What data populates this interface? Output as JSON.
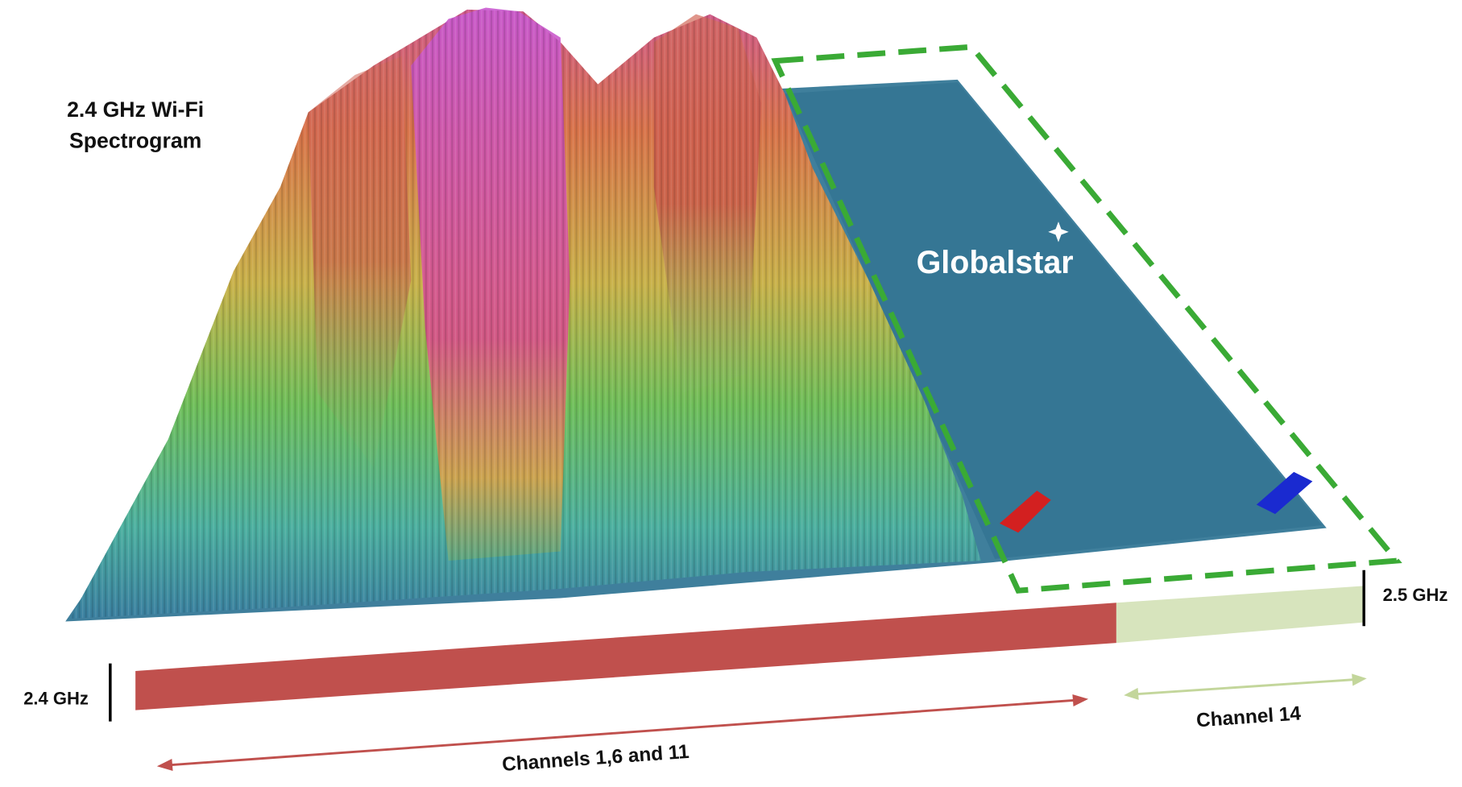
{
  "title": {
    "line1": "2.4 GHz Wi-Fi",
    "line2": "Spectrogram"
  },
  "logo": "Globalstar",
  "labels": {
    "start": "2.4 GHz",
    "end": "2.5 GHz",
    "wifi_channels": "Channels 1,6 and 11",
    "channel_14": "Channel 14"
  }
}
